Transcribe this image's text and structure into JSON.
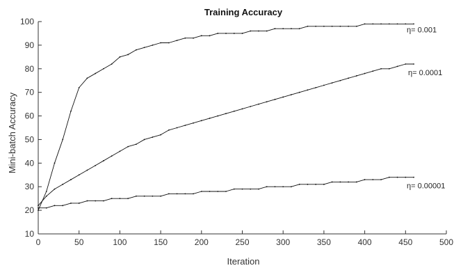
{
  "chart_data": {
    "type": "line",
    "title": "Training Accuracy",
    "xlabel": "Iteration",
    "ylabel": "Mini-batch Accuracy",
    "xlim": [
      0,
      500
    ],
    "ylim": [
      10,
      100
    ],
    "xticks": [
      0,
      50,
      100,
      150,
      200,
      250,
      300,
      350,
      400,
      450,
      500
    ],
    "yticks": [
      10,
      20,
      30,
      40,
      50,
      60,
      70,
      80,
      90,
      100
    ],
    "grid": false,
    "line_color": "#111111",
    "series": [
      {
        "label": "η= 0.001",
        "x": [
          0,
          10,
          20,
          30,
          40,
          50,
          60,
          70,
          80,
          90,
          100,
          110,
          120,
          130,
          140,
          150,
          160,
          170,
          180,
          190,
          200,
          210,
          220,
          230,
          240,
          250,
          260,
          270,
          280,
          290,
          300,
          310,
          320,
          330,
          340,
          350,
          360,
          370,
          380,
          390,
          400,
          410,
          420,
          430,
          440,
          450,
          460
        ],
        "y": [
          20,
          28,
          40,
          50,
          62,
          72,
          76,
          78,
          80,
          82,
          85,
          86,
          88,
          89,
          90,
          91,
          91,
          92,
          93,
          93,
          94,
          94,
          95,
          95,
          95,
          95,
          96,
          96,
          96,
          97,
          97,
          97,
          97,
          98,
          98,
          98,
          98,
          98,
          98,
          98,
          99,
          99,
          99,
          99,
          99,
          99,
          99
        ]
      },
      {
        "label": "η= 0.0001",
        "x": [
          0,
          10,
          20,
          30,
          40,
          50,
          60,
          70,
          80,
          90,
          100,
          110,
          120,
          130,
          140,
          150,
          160,
          170,
          180,
          190,
          200,
          210,
          220,
          230,
          240,
          250,
          260,
          270,
          280,
          290,
          300,
          310,
          320,
          330,
          340,
          350,
          360,
          370,
          380,
          390,
          400,
          410,
          420,
          430,
          440,
          450,
          460
        ],
        "y": [
          22,
          26,
          29,
          31,
          33,
          35,
          37,
          39,
          41,
          43,
          45,
          47,
          48,
          50,
          51,
          52,
          54,
          55,
          56,
          57,
          58,
          59,
          60,
          61,
          62,
          63,
          64,
          65,
          66,
          67,
          68,
          69,
          70,
          71,
          72,
          73,
          74,
          75,
          76,
          77,
          78,
          79,
          80,
          80,
          81,
          82,
          82
        ]
      },
      {
        "label": "η= 0.00001",
        "x": [
          0,
          10,
          20,
          30,
          40,
          50,
          60,
          70,
          80,
          90,
          100,
          110,
          120,
          130,
          140,
          150,
          160,
          170,
          180,
          190,
          200,
          210,
          220,
          230,
          240,
          250,
          260,
          270,
          280,
          290,
          300,
          310,
          320,
          330,
          340,
          350,
          360,
          370,
          380,
          390,
          400,
          410,
          420,
          430,
          440,
          450,
          460
        ],
        "y": [
          21,
          21,
          22,
          22,
          23,
          23,
          24,
          24,
          24,
          25,
          25,
          25,
          26,
          26,
          26,
          26,
          27,
          27,
          27,
          27,
          28,
          28,
          28,
          28,
          29,
          29,
          29,
          29,
          30,
          30,
          30,
          30,
          31,
          31,
          31,
          31,
          32,
          32,
          32,
          32,
          33,
          33,
          33,
          34,
          34,
          34,
          34
        ]
      }
    ]
  }
}
